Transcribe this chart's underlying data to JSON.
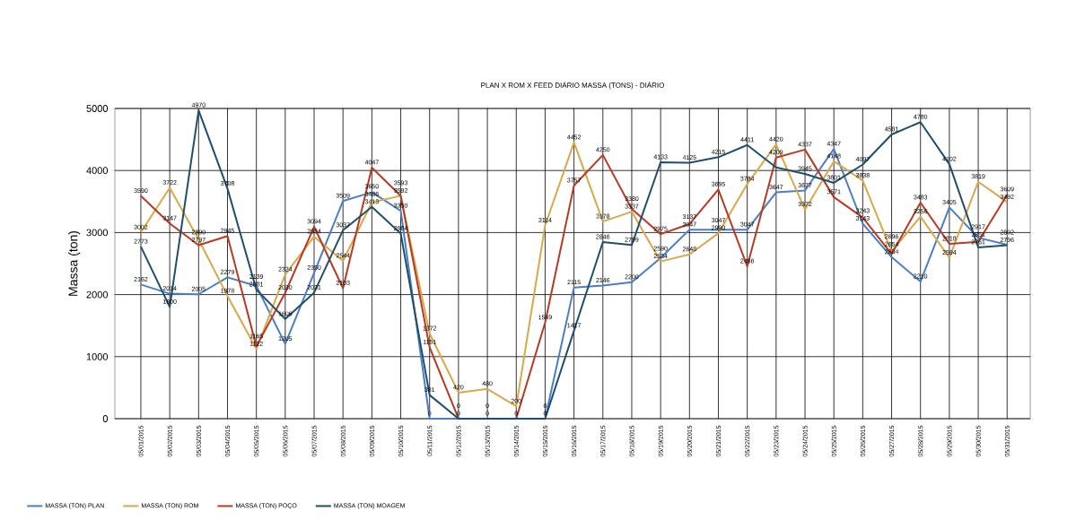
{
  "chart_data": {
    "type": "line",
    "title": "PLAN X ROM X FEED DIÁRIO MASSA (TONS) - DIÁRIO",
    "ylabel": "Massa (ton)",
    "categories": [
      "05/01/2015",
      "05/02/2015",
      "05/03/2015",
      "05/04/2015",
      "05/05/2015",
      "05/06/2015",
      "05/07/2015",
      "05/08/2015",
      "05/09/2015",
      "05/10/2015",
      "05/11/2015",
      "05/12/2015",
      "05/13/2015",
      "05/14/2015",
      "05/15/2015",
      "05/16/2015",
      "05/17/2015",
      "05/18/2015",
      "05/19/2015",
      "05/20/2015",
      "05/21/2015",
      "05/22/2015",
      "05/23/2015",
      "05/24/2015",
      "05/25/2015",
      "05/26/2015",
      "05/27/2015",
      "05/28/2015",
      "05/29/2015",
      "05/30/2015",
      "05/31/2015"
    ],
    "series": [
      {
        "name": "MASSA (TON) PLAN",
        "color": "#4a7fc8",
        "values": [
          2162,
          2014,
          2005,
          2279,
          2139,
          1205,
          2350,
          3509,
          3650,
          3350,
          0,
          0,
          0,
          0,
          0,
          2115,
          2146,
          2200,
          2590,
          3047,
          3047,
          3047,
          3647,
          3677,
          4347,
          3143,
          2604,
          2210,
          3405,
          2917,
          2802
        ],
        "value_labels": [
          "2162",
          "2014",
          "2005",
          "2279",
          "2139",
          "1205",
          "2350",
          "3509",
          "3650",
          "3350",
          "0",
          "0",
          "0",
          "0",
          "0",
          "2115",
          "2146",
          "2200",
          "2590",
          "3047",
          "3047",
          "3047",
          "3647",
          "3677",
          "4347",
          "3143",
          "2604",
          "2210",
          "3405",
          "2917",
          "2802"
        ]
      },
      {
        "name": "MASSA (TON) ROM",
        "color": "#d9a84a",
        "values": [
          3002,
          3722,
          2890,
          1978,
          1122,
          2324,
          2934,
          2544,
          3486,
          3593,
          1372,
          420,
          480,
          200,
          3114,
          4452,
          3178,
          3337,
          2534,
          2648,
          2990,
          3784,
          4420,
          3372,
          4148,
          3838,
          2696,
          3256,
          2594,
          3819,
          3492
        ],
        "value_labels": [
          "3002",
          "3722",
          "2890",
          "1978",
          "1122",
          "2324",
          "2934",
          "2544",
          "3486",
          "3593",
          "1372",
          "420",
          "480",
          "200",
          "3114",
          "4452",
          "3178",
          "3337",
          "2534",
          "2648",
          "2990",
          "3784",
          "4420",
          "3372",
          "4148",
          "3838",
          "2696",
          "3256",
          "2594",
          "3819",
          "3492"
        ]
      },
      {
        "name": "MASSA (TON) POÇO",
        "color": "#b83a23",
        "values": [
          3590,
          3147,
          2797,
          2945,
          1165,
          2030,
          3094,
          2103,
          4047,
          3592,
          1151,
          0,
          0,
          0,
          1549,
          3757,
          4250,
          3380,
          2975,
          3137,
          3695,
          2456,
          4209,
          4337,
          3571,
          3243,
          2654,
          3483,
          2818,
          2851,
          3609
        ],
        "value_labels": [
          "3590",
          "3147",
          "2797",
          "2945",
          "1165",
          "2030",
          "3094",
          "2103",
          "4047",
          "3592",
          "1151",
          "0",
          null,
          null,
          "1549",
          "3757",
          "4250",
          "3380",
          "2975",
          "3137",
          "3695",
          "2456",
          "4209",
          "4337",
          "3571",
          "3243",
          "2654",
          "3483",
          "2818",
          "2851",
          "3609"
        ]
      },
      {
        "name": "MASSA (TON) MOAGEM",
        "color": "#1f4e6e",
        "values": [
          2773,
          1800,
          4970,
          3708,
          2081,
          1606,
          2031,
          3037,
          3413,
          2984,
          381,
          0,
          0,
          0,
          0,
          1417,
          2846,
          2799,
          4133,
          4125,
          4215,
          4411,
          4050,
          3945,
          3801,
          4097,
          4581,
          4780,
          4102,
          2761,
          2796
        ],
        "value_labels": [
          "2773",
          "1800",
          "4970",
          "3708",
          "2081",
          "1606",
          "2031",
          "3037",
          "3413",
          "2984",
          "381",
          null,
          "0",
          null,
          "0",
          "1417",
          "2846",
          "2799",
          "4133",
          "4125",
          "4215",
          "4411",
          null,
          "3945",
          "3801",
          "4097",
          "4581",
          "4780",
          "4102",
          "2761",
          "2796"
        ]
      }
    ],
    "ylim": [
      0,
      5000
    ],
    "yticks": [
      0,
      1000,
      2000,
      3000,
      4000,
      5000
    ],
    "grid": true,
    "legend": "bottom left",
    "marker": "none",
    "line_style": "solid"
  }
}
